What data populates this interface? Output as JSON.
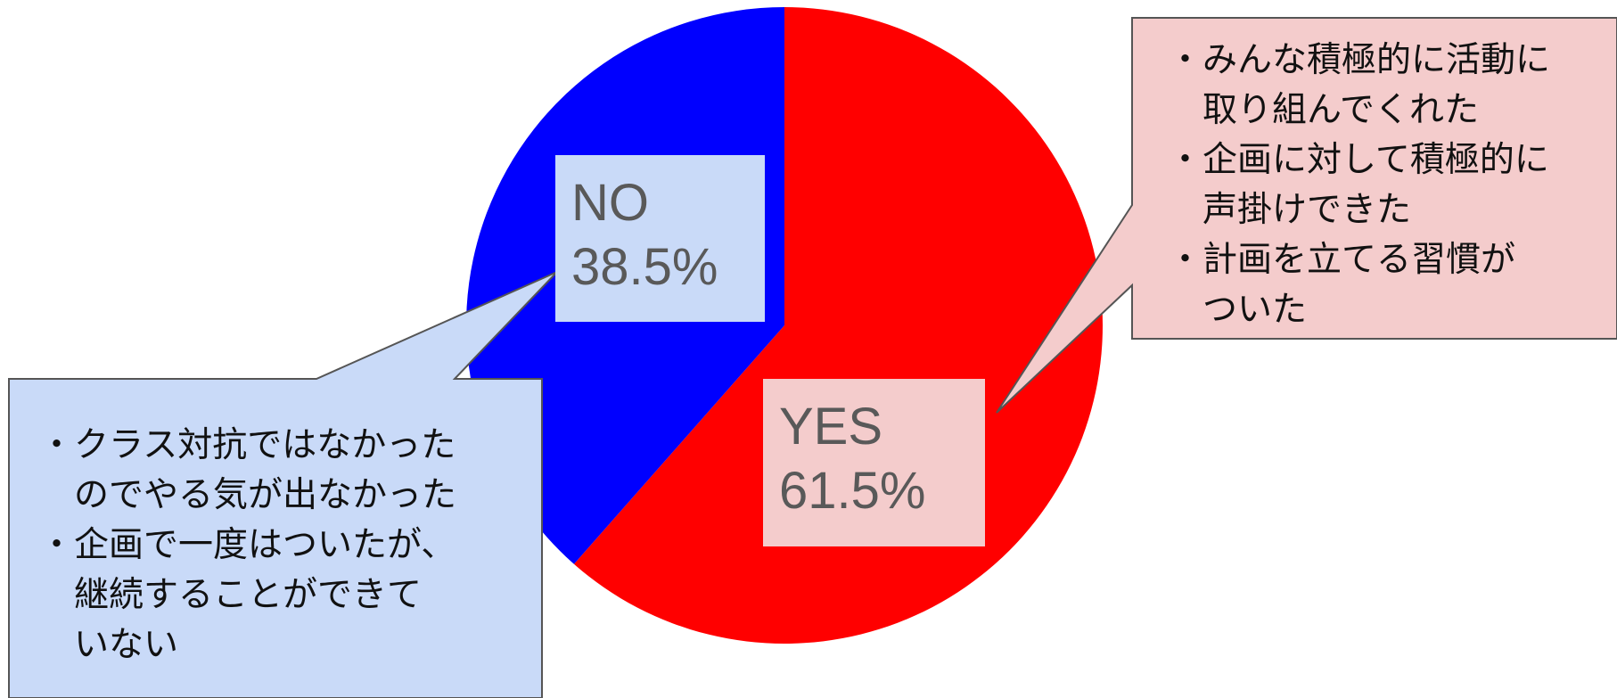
{
  "chart_data": {
    "type": "pie",
    "slices": [
      {
        "label": "YES",
        "percent_text": "61.5%",
        "value": 61.5,
        "color": "#ff0000",
        "label_bg": "#f4cccc"
      },
      {
        "label": "NO",
        "percent_text": "38.5%",
        "value": 38.5,
        "color": "#0000ff",
        "label_bg": "#c9daf8"
      }
    ],
    "start_angle_deg": 0,
    "direction": "clockwise",
    "annotations": {
      "yes": {
        "fill": "#f4cccc",
        "lines": [
          "・みんな積極的に活動に",
          "　取り組んでくれた",
          "・企画に対して積極的に",
          "　声掛けできた",
          "・計画を立てる習慣が",
          "　ついた"
        ]
      },
      "no": {
        "fill": "#c9daf8",
        "lines": [
          "・クラス対抗ではなかった",
          "　のでやる気が出なかった",
          "・企画で一度はついたが、",
          "　継続することができて",
          "　いない"
        ]
      }
    }
  }
}
